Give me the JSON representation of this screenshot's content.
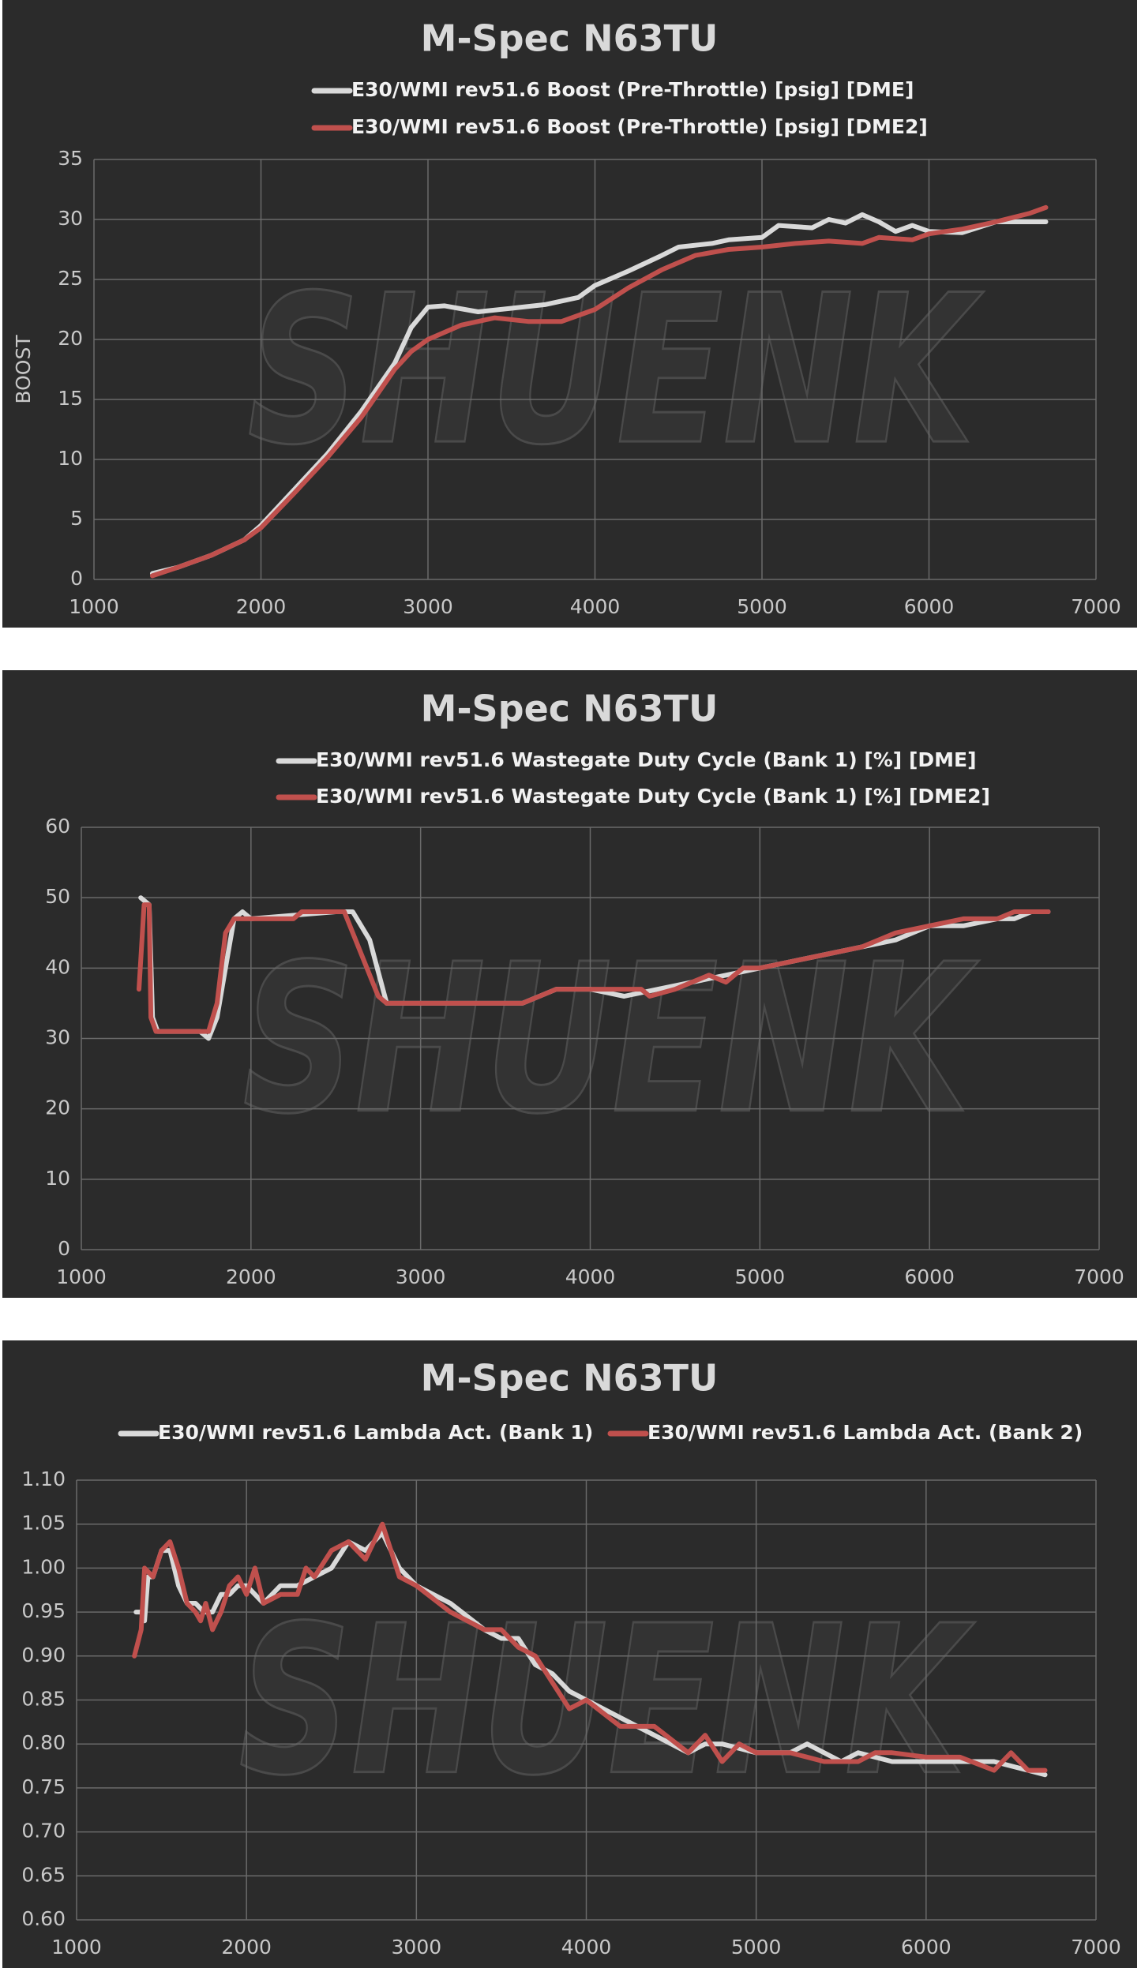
{
  "chart_data": [
    {
      "type": "line",
      "title": "M-Spec N63TU",
      "ylabel": "BOOST",
      "watermark": "SHUENK",
      "grid": true,
      "xlim": [
        1000,
        7000
      ],
      "xticks": [
        1000,
        2000,
        3000,
        4000,
        5000,
        6000,
        7000
      ],
      "ylim": [
        0,
        35
      ],
      "yticks": [
        0,
        5,
        10,
        15,
        20,
        25,
        30,
        35
      ],
      "series": [
        {
          "name": "E30/WMI rev51.6 Boost (Pre-Throttle) [psig]  [DME]",
          "color": "#d9d9d9",
          "x": [
            1350,
            1500,
            1700,
            1900,
            2000,
            2200,
            2400,
            2600,
            2800,
            2900,
            3000,
            3100,
            3300,
            3500,
            3700,
            3900,
            4000,
            4200,
            4400,
            4500,
            4700,
            4800,
            5000,
            5100,
            5300,
            5400,
            5500,
            5600,
            5700,
            5800,
            5900,
            6000,
            6200,
            6400,
            6600,
            6700
          ],
          "values": [
            0.5,
            1,
            2,
            3.3,
            4.5,
            7.5,
            10.5,
            14,
            18,
            21,
            22.7,
            22.8,
            22.3,
            22.6,
            22.9,
            23.5,
            24.5,
            25.7,
            27,
            27.7,
            28,
            28.3,
            28.5,
            29.5,
            29.3,
            30,
            29.7,
            30.4,
            29.8,
            29,
            29.5,
            29,
            28.9,
            29.8,
            29.8,
            29.8
          ]
        },
        {
          "name": "E30/WMI rev51.6 Boost (Pre-Throttle) [psig]  [DME2]",
          "color": "#c0504d",
          "x": [
            1350,
            1500,
            1700,
            1900,
            2000,
            2200,
            2400,
            2600,
            2800,
            2900,
            3000,
            3200,
            3400,
            3600,
            3800,
            4000,
            4200,
            4400,
            4600,
            4800,
            5000,
            5200,
            5400,
            5600,
            5700,
            5900,
            6000,
            6200,
            6400,
            6600,
            6700
          ],
          "values": [
            0.3,
            1,
            2,
            3.3,
            4.3,
            7.2,
            10.2,
            13.5,
            17.5,
            19,
            20,
            21.2,
            21.8,
            21.5,
            21.5,
            22.5,
            24.3,
            25.8,
            27,
            27.5,
            27.7,
            28,
            28.2,
            28,
            28.5,
            28.3,
            28.8,
            29.2,
            29.8,
            30.5,
            31
          ]
        }
      ]
    },
    {
      "type": "line",
      "title": "M-Spec N63TU",
      "watermark": "SHUENK",
      "grid": true,
      "xlim": [
        1000,
        7000
      ],
      "xticks": [
        1000,
        2000,
        3000,
        4000,
        5000,
        6000,
        7000
      ],
      "ylim": [
        0,
        60
      ],
      "yticks": [
        0,
        10,
        20,
        30,
        40,
        50,
        60
      ],
      "series": [
        {
          "name": "E30/WMI rev51.6 Wastegate Duty Cycle (Bank 1) [%]  [DME]",
          "color": "#d9d9d9",
          "x": [
            1350,
            1400,
            1420,
            1450,
            1700,
            1750,
            1800,
            1850,
            1900,
            1950,
            2000,
            2500,
            2600,
            2700,
            2800,
            3000,
            3600,
            3700,
            3800,
            4000,
            4200,
            4400,
            4600,
            4800,
            5000,
            5200,
            5400,
            5600,
            5800,
            6000,
            6200,
            6400,
            6500,
            6600,
            6700
          ],
          "values": [
            50,
            49,
            33,
            31,
            31,
            30,
            33,
            40,
            47,
            48,
            47,
            48,
            48,
            44,
            35,
            35,
            35,
            36,
            37,
            37,
            36,
            37,
            38,
            39,
            40,
            41,
            42,
            43,
            44,
            46,
            46,
            47,
            47,
            48,
            48
          ]
        },
        {
          "name": "E30/WMI rev51.6 Wastegate Duty Cycle (Bank 1) [%]  [DME2]",
          "color": "#c0504d",
          "x": [
            1340,
            1370,
            1400,
            1410,
            1440,
            1700,
            1750,
            1800,
            1850,
            1900,
            2000,
            2250,
            2300,
            2550,
            2650,
            2750,
            2800,
            3600,
            3700,
            3800,
            4300,
            4350,
            4500,
            4600,
            4700,
            4800,
            4900,
            5000,
            5200,
            5400,
            5600,
            5800,
            6000,
            6200,
            6400,
            6500,
            6700
          ],
          "values": [
            37,
            49,
            49,
            33,
            31,
            31,
            31,
            35,
            45,
            47,
            47,
            47,
            48,
            48,
            42,
            36,
            35,
            35,
            36,
            37,
            37,
            36,
            37,
            38,
            39,
            38,
            40,
            40,
            41,
            42,
            43,
            45,
            46,
            47,
            47,
            48,
            48
          ]
        }
      ]
    },
    {
      "type": "line",
      "title": "M-Spec N63TU",
      "watermark": "SHUENK",
      "grid": true,
      "xlim": [
        1000,
        7000
      ],
      "xticks": [
        1000,
        2000,
        3000,
        4000,
        5000,
        6000,
        7000
      ],
      "ylim": [
        0.6,
        1.1
      ],
      "yticks": [
        {
          "value": 0.6,
          "label": "0.60"
        },
        0.65,
        {
          "value": 0.7,
          "label": "0.70"
        },
        0.75,
        {
          "value": 0.8,
          "label": "0.80"
        },
        0.85,
        {
          "value": 0.9,
          "label": "0.90"
        },
        0.95,
        {
          "value": 1.0,
          "label": "1.00"
        },
        1.05,
        {
          "value": 1.1,
          "label": "1.10"
        }
      ],
      "series": [
        {
          "name": "E30/WMI rev51.6 Lambda Act. (Bank 1)",
          "color": "#d9d9d9",
          "x": [
            1350,
            1380,
            1400,
            1420,
            1450,
            1500,
            1550,
            1600,
            1650,
            1700,
            1750,
            1800,
            1850,
            1900,
            1950,
            2000,
            2100,
            2200,
            2300,
            2400,
            2500,
            2600,
            2700,
            2800,
            2900,
            3000,
            3200,
            3400,
            3500,
            3600,
            3700,
            3800,
            3900,
            4000,
            4200,
            4400,
            4600,
            4700,
            4800,
            5000,
            5200,
            5300,
            5500,
            5600,
            5800,
            6000,
            6200,
            6400,
            6600,
            6700
          ],
          "values": [
            0.95,
            0.95,
            0.94,
            0.99,
            0.99,
            1.02,
            1.02,
            0.98,
            0.96,
            0.96,
            0.95,
            0.95,
            0.97,
            0.97,
            0.98,
            0.98,
            0.96,
            0.98,
            0.98,
            0.99,
            1.0,
            1.03,
            1.02,
            1.04,
            1.0,
            0.98,
            0.96,
            0.93,
            0.92,
            0.92,
            0.89,
            0.88,
            0.86,
            0.85,
            0.83,
            0.81,
            0.79,
            0.8,
            0.8,
            0.79,
            0.79,
            0.8,
            0.78,
            0.79,
            0.78,
            0.78,
            0.78,
            0.78,
            0.77,
            0.765
          ]
        },
        {
          "name": "E30/WMI rev51.6 Lambda Act. (Bank 2)",
          "color": "#c0504d",
          "x": [
            1340,
            1380,
            1400,
            1450,
            1500,
            1550,
            1600,
            1650,
            1700,
            1730,
            1760,
            1800,
            1850,
            1900,
            1950,
            2000,
            2050,
            2100,
            2200,
            2300,
            2350,
            2400,
            2500,
            2600,
            2700,
            2800,
            2850,
            2900,
            3000,
            3200,
            3400,
            3500,
            3600,
            3700,
            3800,
            3900,
            4000,
            4200,
            4400,
            4600,
            4700,
            4800,
            4900,
            5000,
            5200,
            5400,
            5600,
            5700,
            5800,
            6000,
            6200,
            6400,
            6500,
            6600,
            6700
          ],
          "values": [
            0.9,
            0.93,
            1.0,
            0.99,
            1.02,
            1.03,
            1.0,
            0.96,
            0.95,
            0.94,
            0.96,
            0.93,
            0.95,
            0.98,
            0.99,
            0.97,
            1.0,
            0.96,
            0.97,
            0.97,
            1.0,
            0.99,
            1.02,
            1.03,
            1.01,
            1.05,
            1.02,
            0.99,
            0.98,
            0.95,
            0.93,
            0.93,
            0.91,
            0.9,
            0.87,
            0.84,
            0.85,
            0.82,
            0.82,
            0.79,
            0.81,
            0.78,
            0.8,
            0.79,
            0.79,
            0.78,
            0.78,
            0.79,
            0.79,
            0.785,
            0.785,
            0.77,
            0.79,
            0.77,
            0.77
          ]
        }
      ]
    }
  ]
}
